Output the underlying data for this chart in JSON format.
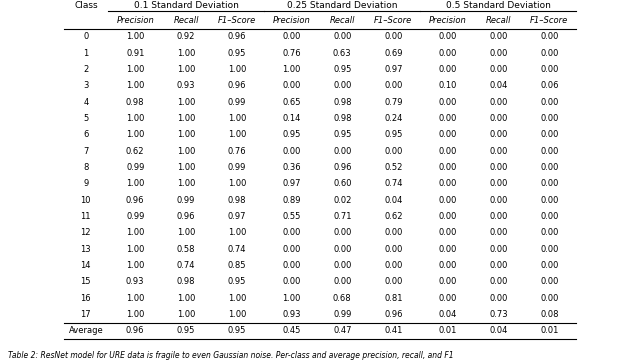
{
  "caption": "Table 2: ResNet model for URE data is fragile to even Gaussian noise. Per-class and average precision, recall, and F1",
  "col_groups": [
    {
      "label": "0.1 Standard Deviation"
    },
    {
      "label": "0.25 Standard Deviation"
    },
    {
      "label": "0.5 Standard Deviation"
    }
  ],
  "row_header": "Class",
  "sub_headers": [
    "Precision",
    "Recall",
    "F1–Score"
  ],
  "rows": [
    [
      "0",
      "1.00",
      "0.92",
      "0.96",
      "0.00",
      "0.00",
      "0.00",
      "0.00",
      "0.00",
      "0.00"
    ],
    [
      "1",
      "0.91",
      "1.00",
      "0.95",
      "0.76",
      "0.63",
      "0.69",
      "0.00",
      "0.00",
      "0.00"
    ],
    [
      "2",
      "1.00",
      "1.00",
      "1.00",
      "1.00",
      "0.95",
      "0.97",
      "0.00",
      "0.00",
      "0.00"
    ],
    [
      "3",
      "1.00",
      "0.93",
      "0.96",
      "0.00",
      "0.00",
      "0.00",
      "0.10",
      "0.04",
      "0.06"
    ],
    [
      "4",
      "0.98",
      "1.00",
      "0.99",
      "0.65",
      "0.98",
      "0.79",
      "0.00",
      "0.00",
      "0.00"
    ],
    [
      "5",
      "1.00",
      "1.00",
      "1.00",
      "0.14",
      "0.98",
      "0.24",
      "0.00",
      "0.00",
      "0.00"
    ],
    [
      "6",
      "1.00",
      "1.00",
      "1.00",
      "0.95",
      "0.95",
      "0.95",
      "0.00",
      "0.00",
      "0.00"
    ],
    [
      "7",
      "0.62",
      "1.00",
      "0.76",
      "0.00",
      "0.00",
      "0.00",
      "0.00",
      "0.00",
      "0.00"
    ],
    [
      "8",
      "0.99",
      "1.00",
      "0.99",
      "0.36",
      "0.96",
      "0.52",
      "0.00",
      "0.00",
      "0.00"
    ],
    [
      "9",
      "1.00",
      "1.00",
      "1.00",
      "0.97",
      "0.60",
      "0.74",
      "0.00",
      "0.00",
      "0.00"
    ],
    [
      "10",
      "0.96",
      "0.99",
      "0.98",
      "0.89",
      "0.02",
      "0.04",
      "0.00",
      "0.00",
      "0.00"
    ],
    [
      "11",
      "0.99",
      "0.96",
      "0.97",
      "0.55",
      "0.71",
      "0.62",
      "0.00",
      "0.00",
      "0.00"
    ],
    [
      "12",
      "1.00",
      "1.00",
      "1.00",
      "0.00",
      "0.00",
      "0.00",
      "0.00",
      "0.00",
      "0.00"
    ],
    [
      "13",
      "1.00",
      "0.58",
      "0.74",
      "0.00",
      "0.00",
      "0.00",
      "0.00",
      "0.00",
      "0.00"
    ],
    [
      "14",
      "1.00",
      "0.74",
      "0.85",
      "0.00",
      "0.00",
      "0.00",
      "0.00",
      "0.00",
      "0.00"
    ],
    [
      "15",
      "0.93",
      "0.98",
      "0.95",
      "0.00",
      "0.00",
      "0.00",
      "0.00",
      "0.00",
      "0.00"
    ],
    [
      "16",
      "1.00",
      "1.00",
      "1.00",
      "1.00",
      "0.68",
      "0.81",
      "0.00",
      "0.00",
      "0.00"
    ],
    [
      "17",
      "1.00",
      "1.00",
      "1.00",
      "0.93",
      "0.99",
      "0.96",
      "0.04",
      "0.73",
      "0.08"
    ]
  ],
  "average_row": [
    "Average",
    "0.96",
    "0.95",
    "0.95",
    "0.45",
    "0.47",
    "0.41",
    "0.01",
    "0.04",
    "0.01"
  ],
  "font_size": 6.0,
  "header_font_size": 6.5
}
